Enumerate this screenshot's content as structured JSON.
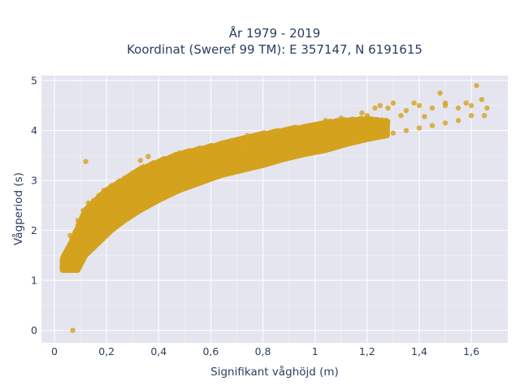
{
  "chart_data": {
    "type": "scatter",
    "title_line1": "År 1979 - 2019",
    "title_line2": "Koordinat (Sweref 99 TM): E 357147, N 6191615",
    "xlabel": "Signifikant våghöjd (m)",
    "ylabel": "Vågperiod (s)",
    "xlim": [
      -0.05,
      1.74
    ],
    "ylim": [
      -0.25,
      5.1
    ],
    "x_ticks": [
      0,
      0.2,
      0.4,
      0.6,
      0.8,
      1.0,
      1.2,
      1.4,
      1.6
    ],
    "x_tick_labels": [
      "0",
      "0,2",
      "0,4",
      "0,6",
      "0,8",
      "1",
      "1,2",
      "1,4",
      "1,6"
    ],
    "y_ticks": [
      0,
      1,
      2,
      3,
      4,
      5
    ],
    "y_tick_labels": [
      "0",
      "1",
      "2",
      "3",
      "4",
      "5"
    ],
    "grid": true,
    "marker_color": "#d4a21e",
    "plot_bg": "#e5e5f0",
    "points": [
      [
        0.07,
        0.0
      ],
      [
        0.12,
        3.38
      ],
      [
        0.03,
        1.25
      ],
      [
        0.04,
        1.35
      ],
      [
        0.05,
        1.45
      ],
      [
        0.06,
        1.55
      ],
      [
        0.07,
        1.62
      ],
      [
        0.08,
        1.7
      ],
      [
        0.09,
        1.85
      ],
      [
        0.1,
        1.95
      ],
      [
        0.11,
        2.1
      ],
      [
        0.12,
        2.2
      ],
      [
        0.14,
        2.35
      ],
      [
        0.16,
        2.45
      ],
      [
        0.18,
        2.55
      ],
      [
        0.2,
        2.6
      ],
      [
        0.22,
        2.72
      ],
      [
        0.25,
        2.8
      ],
      [
        0.28,
        2.9
      ],
      [
        0.3,
        3.0
      ],
      [
        0.33,
        3.05
      ],
      [
        0.36,
        3.15
      ],
      [
        0.4,
        3.2
      ],
      [
        0.45,
        3.3
      ],
      [
        0.5,
        3.4
      ],
      [
        0.55,
        3.55
      ],
      [
        0.6,
        3.62
      ],
      [
        0.65,
        3.7
      ],
      [
        0.7,
        3.75
      ],
      [
        0.75,
        3.8
      ],
      [
        0.8,
        3.87
      ],
      [
        0.85,
        3.93
      ],
      [
        0.9,
        4.0
      ],
      [
        0.95,
        4.05
      ],
      [
        1.0,
        4.1
      ],
      [
        1.05,
        4.15
      ],
      [
        1.1,
        4.2
      ],
      [
        1.15,
        4.22
      ],
      [
        1.2,
        4.3
      ],
      [
        1.23,
        4.45
      ],
      [
        1.25,
        4.5
      ],
      [
        1.3,
        4.55
      ],
      [
        1.35,
        4.4
      ],
      [
        1.4,
        4.5
      ],
      [
        1.45,
        4.45
      ],
      [
        1.48,
        4.75
      ],
      [
        1.5,
        4.5
      ],
      [
        1.55,
        4.45
      ],
      [
        1.6,
        4.5
      ],
      [
        1.62,
        4.9
      ],
      [
        1.64,
        4.62
      ],
      [
        1.65,
        4.3
      ],
      [
        1.66,
        4.45
      ],
      [
        0.05,
        1.2
      ],
      [
        0.08,
        1.35
      ],
      [
        0.1,
        1.5
      ],
      [
        0.12,
        1.6
      ],
      [
        0.14,
        1.7
      ],
      [
        0.16,
        1.85
      ],
      [
        0.18,
        1.95
      ],
      [
        0.2,
        2.05
      ],
      [
        0.22,
        2.15
      ],
      [
        0.25,
        2.25
      ],
      [
        0.28,
        2.35
      ],
      [
        0.3,
        2.45
      ],
      [
        0.35,
        2.55
      ],
      [
        0.4,
        2.65
      ],
      [
        0.45,
        2.75
      ],
      [
        0.5,
        2.85
      ],
      [
        0.55,
        2.95
      ],
      [
        0.6,
        3.05
      ],
      [
        0.65,
        3.15
      ],
      [
        0.7,
        3.2
      ],
      [
        0.75,
        3.3
      ],
      [
        0.8,
        3.35
      ],
      [
        0.85,
        3.45
      ],
      [
        0.9,
        3.5
      ],
      [
        0.95,
        3.55
      ],
      [
        1.0,
        3.62
      ],
      [
        1.05,
        3.67
      ],
      [
        1.1,
        3.7
      ],
      [
        1.15,
        3.78
      ],
      [
        1.2,
        3.85
      ],
      [
        1.25,
        3.9
      ],
      [
        1.3,
        3.95
      ],
      [
        1.35,
        4.0
      ],
      [
        1.4,
        4.05
      ],
      [
        1.45,
        4.1
      ],
      [
        1.5,
        4.15
      ],
      [
        1.55,
        4.2
      ],
      [
        1.6,
        4.3
      ],
      [
        0.06,
        1.9
      ],
      [
        0.09,
        2.2
      ],
      [
        0.11,
        2.4
      ],
      [
        0.13,
        2.55
      ],
      [
        0.15,
        2.6
      ],
      [
        0.17,
        2.7
      ],
      [
        0.19,
        2.8
      ],
      [
        0.21,
        2.85
      ],
      [
        0.24,
        2.95
      ],
      [
        0.27,
        3.05
      ],
      [
        0.3,
        3.15
      ],
      [
        0.34,
        3.25
      ],
      [
        0.38,
        3.35
      ],
      [
        0.42,
        3.4
      ],
      [
        0.46,
        3.5
      ],
      [
        0.5,
        3.55
      ],
      [
        0.56,
        3.65
      ],
      [
        0.62,
        3.7
      ],
      [
        0.68,
        3.8
      ],
      [
        0.74,
        3.9
      ],
      [
        0.8,
        3.95
      ],
      [
        0.86,
        4.0
      ],
      [
        0.92,
        4.05
      ],
      [
        0.98,
        4.1
      ],
      [
        1.04,
        4.2
      ],
      [
        1.1,
        4.25
      ],
      [
        1.18,
        4.35
      ],
      [
        1.28,
        4.45
      ],
      [
        1.38,
        4.55
      ],
      [
        1.5,
        4.55
      ],
      [
        1.58,
        4.55
      ],
      [
        1.42,
        4.28
      ],
      [
        1.33,
        4.3
      ],
      [
        0.33,
        3.4
      ],
      [
        0.36,
        3.48
      ],
      [
        0.48,
        3.55
      ],
      [
        0.52,
        3.6
      ],
      [
        0.58,
        3.48
      ],
      [
        0.66,
        3.58
      ],
      [
        0.72,
        3.62
      ],
      [
        0.78,
        3.72
      ],
      [
        0.15,
        2.0
      ],
      [
        0.18,
        2.15
      ],
      [
        0.2,
        2.25
      ],
      [
        0.23,
        2.4
      ],
      [
        0.26,
        2.5
      ],
      [
        0.29,
        2.6
      ],
      [
        0.32,
        2.7
      ],
      [
        0.36,
        2.85
      ],
      [
        0.4,
        2.95
      ],
      [
        0.44,
        3.05
      ],
      [
        0.48,
        3.12
      ],
      [
        0.52,
        3.2
      ],
      [
        0.56,
        3.3
      ],
      [
        0.62,
        3.38
      ],
      [
        0.68,
        3.45
      ],
      [
        0.74,
        3.55
      ],
      [
        0.82,
        3.65
      ],
      [
        0.88,
        3.75
      ],
      [
        0.94,
        3.82
      ],
      [
        1.02,
        3.9
      ],
      [
        1.08,
        3.98
      ],
      [
        1.16,
        4.05
      ],
      [
        1.22,
        4.1
      ],
      [
        1.28,
        4.18
      ]
    ],
    "bands": [
      {
        "x": 0.03,
        "lo": 1.2,
        "hi": 1.45
      },
      {
        "x": 0.06,
        "lo": 1.2,
        "hi": 1.75
      },
      {
        "x": 0.09,
        "lo": 1.2,
        "hi": 2.1
      },
      {
        "x": 0.12,
        "lo": 1.5,
        "hi": 2.45
      },
      {
        "x": 0.15,
        "lo": 1.65,
        "hi": 2.6
      },
      {
        "x": 0.18,
        "lo": 1.8,
        "hi": 2.75
      },
      {
        "x": 0.22,
        "lo": 2.0,
        "hi": 2.9
      },
      {
        "x": 0.27,
        "lo": 2.2,
        "hi": 3.05
      },
      {
        "x": 0.33,
        "lo": 2.4,
        "hi": 3.25
      },
      {
        "x": 0.4,
        "lo": 2.6,
        "hi": 3.4
      },
      {
        "x": 0.48,
        "lo": 2.8,
        "hi": 3.55
      },
      {
        "x": 0.56,
        "lo": 2.95,
        "hi": 3.65
      },
      {
        "x": 0.64,
        "lo": 3.1,
        "hi": 3.75
      },
      {
        "x": 0.72,
        "lo": 3.2,
        "hi": 3.85
      },
      {
        "x": 0.8,
        "lo": 3.3,
        "hi": 3.95
      },
      {
        "x": 0.88,
        "lo": 3.42,
        "hi": 4.02
      },
      {
        "x": 0.96,
        "lo": 3.52,
        "hi": 4.1
      },
      {
        "x": 1.04,
        "lo": 3.6,
        "hi": 4.18
      },
      {
        "x": 1.12,
        "lo": 3.72,
        "hi": 4.22
      },
      {
        "x": 1.2,
        "lo": 3.82,
        "hi": 4.25
      },
      {
        "x": 1.28,
        "lo": 3.9,
        "hi": 4.2
      }
    ]
  }
}
